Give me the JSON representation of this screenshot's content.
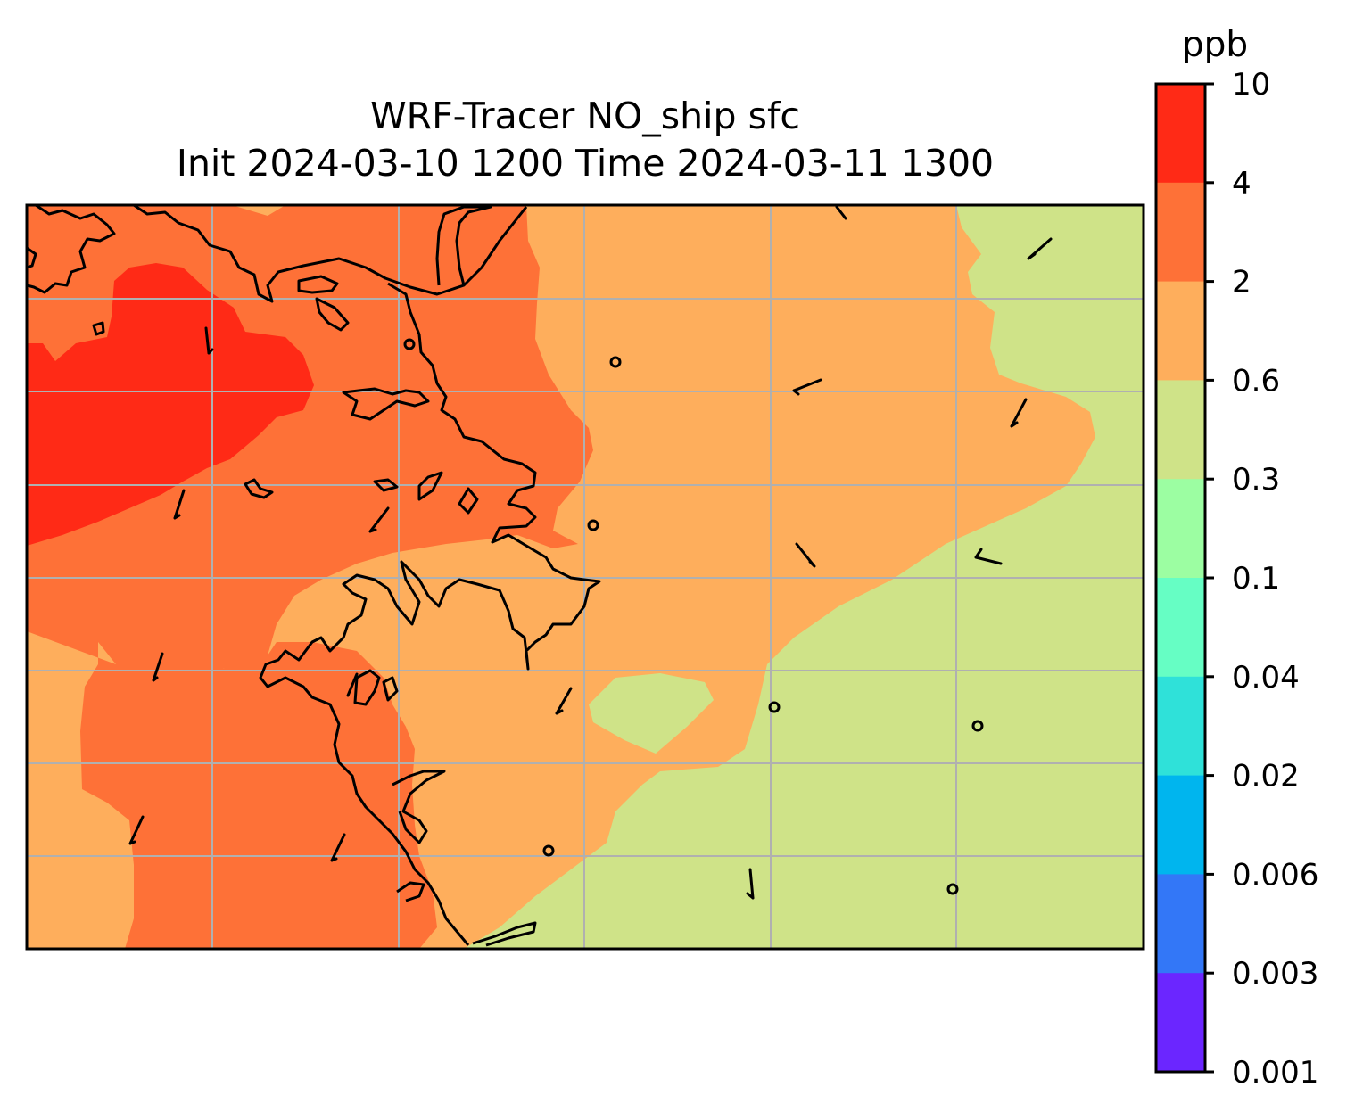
{
  "map": {
    "title_line1": "WRF-Tracer NO_ship sfc",
    "title_line2": "Init 2024-03-10 1200 Time 2024-03-11 1300",
    "field_colors": {
      "level_4_10": "#ff2a16",
      "level_2_4": "#fe7137",
      "level_0_6_2": "#feae5c",
      "level_0_3_0_6": "#cfe388",
      "gridline": "#b0b0b0",
      "coastline": "#000000",
      "frame": "#000000"
    }
  },
  "colorbar": {
    "unit": "ppb",
    "ticks": [
      "10",
      "4",
      "2",
      "0.6",
      "0.3",
      "0.1",
      "0.04",
      "0.02",
      "0.006",
      "0.003",
      "0.001"
    ],
    "colors": [
      "#ff2a16",
      "#fe7137",
      "#feae5c",
      "#cfe388",
      "#9cfea2",
      "#66fec4",
      "#2fe1d9",
      "#00b5ee",
      "#3377f7",
      "#6b26ff"
    ]
  }
}
